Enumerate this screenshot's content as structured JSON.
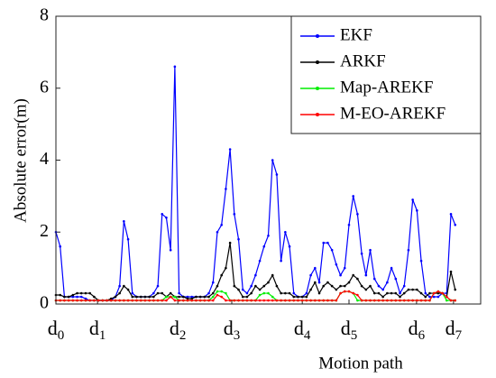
{
  "chart_data": {
    "type": "line",
    "x_label": "Motion path",
    "y_label": "Absolute error(m)",
    "x": [
      0,
      1,
      2,
      3,
      4,
      5,
      6,
      7,
      8,
      9,
      10,
      11,
      12,
      13,
      14,
      15,
      16,
      17,
      18,
      19,
      20,
      21,
      22,
      23,
      24,
      25,
      26,
      27,
      28,
      29,
      30,
      31,
      32,
      33,
      34,
      35,
      36,
      37,
      38,
      39,
      40,
      41,
      42,
      43,
      44,
      45,
      46,
      47,
      48,
      49,
      50,
      51,
      52,
      53,
      54,
      55,
      56,
      57,
      58,
      59,
      60,
      61,
      62,
      63,
      64,
      65,
      66,
      67,
      68,
      69,
      70,
      71,
      72,
      73,
      74,
      75,
      76,
      77,
      78,
      79,
      80,
      81,
      82,
      83,
      84,
      85,
      86,
      87,
      88,
      89,
      90,
      91,
      92,
      93,
      94
    ],
    "xlim": [
      0,
      100
    ],
    "xticks": [
      {
        "value": 0,
        "label": "d0"
      },
      {
        "value": 9.8,
        "label": "d1"
      },
      {
        "value": 28.7,
        "label": "d2"
      },
      {
        "value": 41.4,
        "label": "d3"
      },
      {
        "value": 58.0,
        "label": "d4"
      },
      {
        "value": 69.0,
        "label": "d5"
      },
      {
        "value": 84.9,
        "label": "d6"
      },
      {
        "value": 93.6,
        "label": "d7"
      }
    ],
    "ylim": [
      0,
      8
    ],
    "yticks": [
      0,
      2,
      4,
      6,
      8
    ],
    "legend": "upper right",
    "series": [
      {
        "name": "EKF",
        "color": "#0000ff",
        "values": [
          2.0,
          1.6,
          0.2,
          0.2,
          0.2,
          0.2,
          0.2,
          0.15,
          0.1,
          0.1,
          0.1,
          0.1,
          0.1,
          0.1,
          0.2,
          0.5,
          2.3,
          1.8,
          0.3,
          0.2,
          0.2,
          0.2,
          0.2,
          0.3,
          0.5,
          2.5,
          2.4,
          1.5,
          6.6,
          0.3,
          0.2,
          0.2,
          0.2,
          0.2,
          0.2,
          0.2,
          0.3,
          0.6,
          2.0,
          2.2,
          3.2,
          4.3,
          2.5,
          1.8,
          0.4,
          0.3,
          0.5,
          0.8,
          1.2,
          1.6,
          1.9,
          4.0,
          3.6,
          1.2,
          2.0,
          1.6,
          0.3,
          0.2,
          0.2,
          0.3,
          0.8,
          1.0,
          0.6,
          1.7,
          1.7,
          1.5,
          1.1,
          0.8,
          1.0,
          2.2,
          3.0,
          2.5,
          1.4,
          0.8,
          1.5,
          0.7,
          0.5,
          0.4,
          0.6,
          1.0,
          0.7,
          0.3,
          0.5,
          1.5,
          2.9,
          2.6,
          1.2,
          0.3,
          0.2,
          0.2,
          0.2,
          0.3,
          0.3,
          2.5,
          2.2
        ]
      },
      {
        "name": "ARKF",
        "color": "#000000",
        "values": [
          0.25,
          0.25,
          0.2,
          0.2,
          0.25,
          0.3,
          0.3,
          0.3,
          0.3,
          0.2,
          0.1,
          0.1,
          0.1,
          0.15,
          0.2,
          0.3,
          0.5,
          0.4,
          0.2,
          0.2,
          0.2,
          0.2,
          0.2,
          0.2,
          0.3,
          0.3,
          0.2,
          0.3,
          0.2,
          0.2,
          0.2,
          0.15,
          0.15,
          0.2,
          0.2,
          0.2,
          0.2,
          0.3,
          0.5,
          0.8,
          1.0,
          1.7,
          0.5,
          0.4,
          0.2,
          0.2,
          0.3,
          0.5,
          0.4,
          0.5,
          0.6,
          0.8,
          0.5,
          0.3,
          0.3,
          0.3,
          0.2,
          0.2,
          0.2,
          0.2,
          0.4,
          0.6,
          0.3,
          0.5,
          0.6,
          0.5,
          0.4,
          0.5,
          0.5,
          0.6,
          0.8,
          0.7,
          0.5,
          0.4,
          0.5,
          0.3,
          0.3,
          0.2,
          0.3,
          0.3,
          0.3,
          0.2,
          0.3,
          0.4,
          0.4,
          0.4,
          0.3,
          0.2,
          0.3,
          0.3,
          0.3,
          0.3,
          0.2,
          0.9,
          0.4
        ]
      },
      {
        "name": "Map-AREKF",
        "color": "#00ee00",
        "values": [
          0.1,
          0.1,
          0.1,
          0.1,
          0.1,
          0.1,
          0.1,
          0.1,
          0.1,
          0.1,
          0.1,
          0.1,
          0.1,
          0.1,
          0.1,
          0.1,
          0.1,
          0.1,
          0.1,
          0.1,
          0.1,
          0.1,
          0.1,
          0.1,
          0.1,
          0.1,
          0.2,
          0.2,
          0.2,
          0.1,
          0.1,
          0.1,
          0.1,
          0.1,
          0.1,
          0.1,
          0.1,
          0.2,
          0.35,
          0.35,
          0.3,
          0.1,
          0.1,
          0.1,
          0.1,
          0.1,
          0.1,
          0.1,
          0.25,
          0.3,
          0.3,
          0.2,
          0.1,
          0.1,
          0.1,
          0.1,
          0.1,
          0.1,
          0.1,
          0.1,
          0.1,
          0.1,
          0.1,
          0.1,
          0.1,
          0.1,
          0.1,
          0.3,
          0.35,
          0.35,
          0.3,
          0.1,
          0.1,
          0.1,
          0.1,
          0.1,
          0.1,
          0.1,
          0.1,
          0.1,
          0.1,
          0.1,
          0.1,
          0.1,
          0.1,
          0.1,
          0.1,
          0.1,
          0.1,
          0.3,
          0.35,
          0.3,
          0.1,
          0.1,
          0.1
        ]
      },
      {
        "name": "M-EO-AREKF",
        "color": "#ff0000",
        "values": [
          0.1,
          0.1,
          0.1,
          0.1,
          0.1,
          0.1,
          0.1,
          0.1,
          0.1,
          0.1,
          0.1,
          0.1,
          0.1,
          0.1,
          0.1,
          0.1,
          0.1,
          0.1,
          0.1,
          0.1,
          0.1,
          0.1,
          0.1,
          0.1,
          0.1,
          0.1,
          0.1,
          0.2,
          0.1,
          0.1,
          0.1,
          0.1,
          0.1,
          0.1,
          0.1,
          0.1,
          0.1,
          0.1,
          0.25,
          0.2,
          0.1,
          0.1,
          0.1,
          0.1,
          0.1,
          0.1,
          0.1,
          0.1,
          0.1,
          0.1,
          0.1,
          0.1,
          0.1,
          0.1,
          0.1,
          0.1,
          0.1,
          0.1,
          0.1,
          0.1,
          0.1,
          0.1,
          0.1,
          0.1,
          0.1,
          0.1,
          0.1,
          0.3,
          0.35,
          0.35,
          0.3,
          0.25,
          0.1,
          0.1,
          0.1,
          0.1,
          0.1,
          0.1,
          0.1,
          0.1,
          0.1,
          0.1,
          0.1,
          0.1,
          0.1,
          0.1,
          0.1,
          0.1,
          0.1,
          0.3,
          0.35,
          0.3,
          0.2,
          0.1,
          0.1
        ]
      }
    ]
  }
}
